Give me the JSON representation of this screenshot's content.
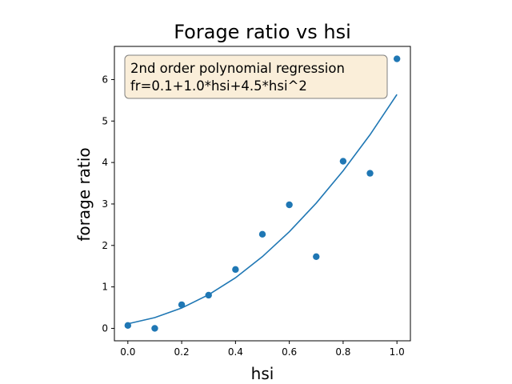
{
  "chart_data": {
    "type": "scatter",
    "title": "Forage ratio vs hsi",
    "xlabel": "hsi",
    "ylabel": "forage ratio",
    "xlim": [
      -0.05,
      1.05
    ],
    "ylim": [
      -0.3,
      6.8
    ],
    "xticks": [
      0.0,
      0.2,
      0.4,
      0.6,
      0.8,
      1.0
    ],
    "xtick_labels": [
      "0.0",
      "0.2",
      "0.4",
      "0.6",
      "0.8",
      "1.0"
    ],
    "yticks": [
      0,
      1,
      2,
      3,
      4,
      5,
      6
    ],
    "ytick_labels": [
      "0",
      "1",
      "2",
      "3",
      "4",
      "5",
      "6"
    ],
    "grid": false,
    "annotation": {
      "lines": [
        "2nd order polynomial regression",
        "fr=0.1+1.0*hsi+4.5*hsi^2"
      ]
    },
    "series": [
      {
        "kind": "scatter",
        "color": "#1f77b4",
        "x": [
          0.0,
          0.1,
          0.2,
          0.3,
          0.4,
          0.5,
          0.6,
          0.7,
          0.8,
          0.9,
          1.0
        ],
        "y": [
          0.07,
          0.0,
          0.57,
          0.8,
          1.42,
          2.27,
          2.98,
          1.73,
          4.03,
          3.74,
          6.5
        ]
      },
      {
        "kind": "line",
        "color": "#1f77b4",
        "x": [
          0.0,
          0.1,
          0.2,
          0.3,
          0.4,
          0.5,
          0.6,
          0.7,
          0.8,
          0.9,
          1.0
        ],
        "y": [
          0.11,
          0.26,
          0.49,
          0.81,
          1.22,
          1.73,
          2.33,
          3.02,
          3.8,
          4.67,
          5.64
        ]
      }
    ]
  }
}
